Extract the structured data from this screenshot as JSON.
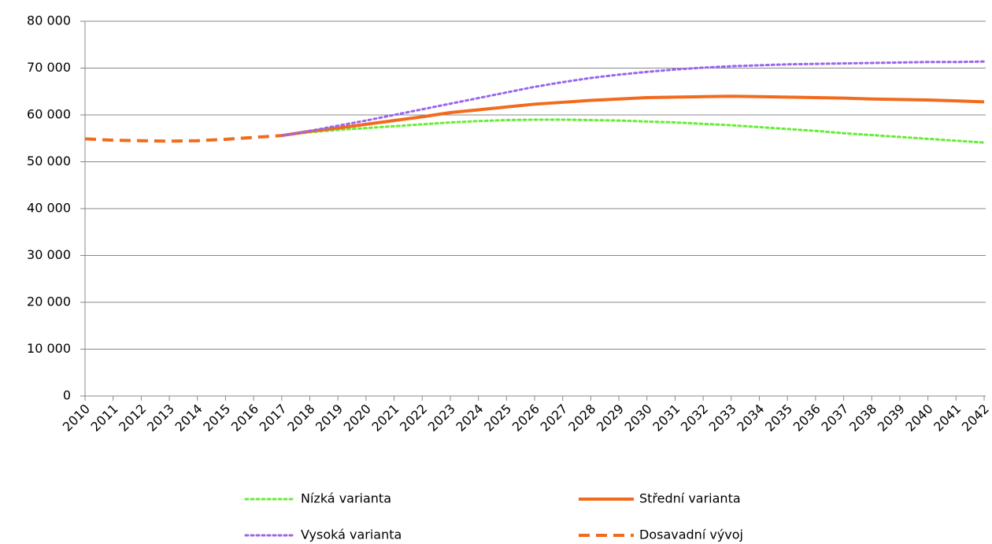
{
  "chart_data": {
    "type": "line",
    "categories": [
      "2010",
      "2011",
      "2012",
      "2013",
      "2014",
      "2015",
      "2016",
      "2017",
      "2018",
      "2019",
      "2020",
      "2021",
      "2022",
      "2023",
      "2024",
      "2025",
      "2026",
      "2027",
      "2028",
      "2029",
      "2030",
      "2031",
      "2032",
      "2033",
      "2034",
      "2035",
      "2036",
      "2037",
      "2038",
      "2039",
      "2040",
      "2041",
      "2042"
    ],
    "series": [
      {
        "name": "Nízká varianta",
        "color": "#66ee33",
        "dash": "dotted",
        "values": [
          null,
          null,
          null,
          null,
          null,
          null,
          null,
          55600,
          56300,
          56800,
          57200,
          57600,
          58000,
          58400,
          58700,
          58900,
          59000,
          59000,
          58900,
          58800,
          58600,
          58400,
          58100,
          57800,
          57400,
          57000,
          56600,
          56100,
          55700,
          55300,
          54900,
          54500,
          54100
        ]
      },
      {
        "name": "Střední varianta",
        "color": "#f26b1d",
        "dash": "solid",
        "values": [
          null,
          null,
          null,
          null,
          null,
          null,
          null,
          55600,
          56500,
          57200,
          58000,
          58800,
          59600,
          60500,
          61100,
          61700,
          62300,
          62700,
          63100,
          63400,
          63700,
          63800,
          63900,
          64000,
          63900,
          63800,
          63700,
          63600,
          63400,
          63300,
          63200,
          63000,
          62800
        ]
      },
      {
        "name": "Vysoká varianta",
        "color": "#9966ee",
        "dash": "dotted",
        "values": [
          null,
          null,
          null,
          null,
          null,
          null,
          null,
          55600,
          56600,
          57700,
          58800,
          60000,
          61200,
          62400,
          63600,
          64800,
          66000,
          67000,
          67900,
          68600,
          69200,
          69700,
          70100,
          70400,
          70600,
          70800,
          70900,
          71000,
          71100,
          71200,
          71300,
          71300,
          71400
        ]
      },
      {
        "name": "Dosavadní vývoj",
        "color": "#f26b1d",
        "dash": "dashed",
        "values": [
          54900,
          54600,
          54500,
          54400,
          54500,
          54800,
          55200,
          55600,
          null,
          null,
          null,
          null,
          null,
          null,
          null,
          null,
          null,
          null,
          null,
          null,
          null,
          null,
          null,
          null,
          null,
          null,
          null,
          null,
          null,
          null,
          null,
          null,
          null
        ]
      }
    ],
    "ylim": [
      0,
      80000
    ],
    "yticks": [
      0,
      {
        "value": 10000,
        "label": "10 000"
      },
      {
        "value": 20000,
        "label": "20 000"
      },
      {
        "value": 30000,
        "label": "30 000"
      },
      {
        "value": 40000,
        "label": "40 000"
      },
      {
        "value": 50000,
        "label": "50 000"
      },
      {
        "value": 60000,
        "label": "60 000"
      },
      {
        "value": 70000,
        "label": "70 000"
      },
      {
        "value": 80000,
        "label": "80 000"
      }
    ],
    "grid": true,
    "legend": "bottom"
  }
}
